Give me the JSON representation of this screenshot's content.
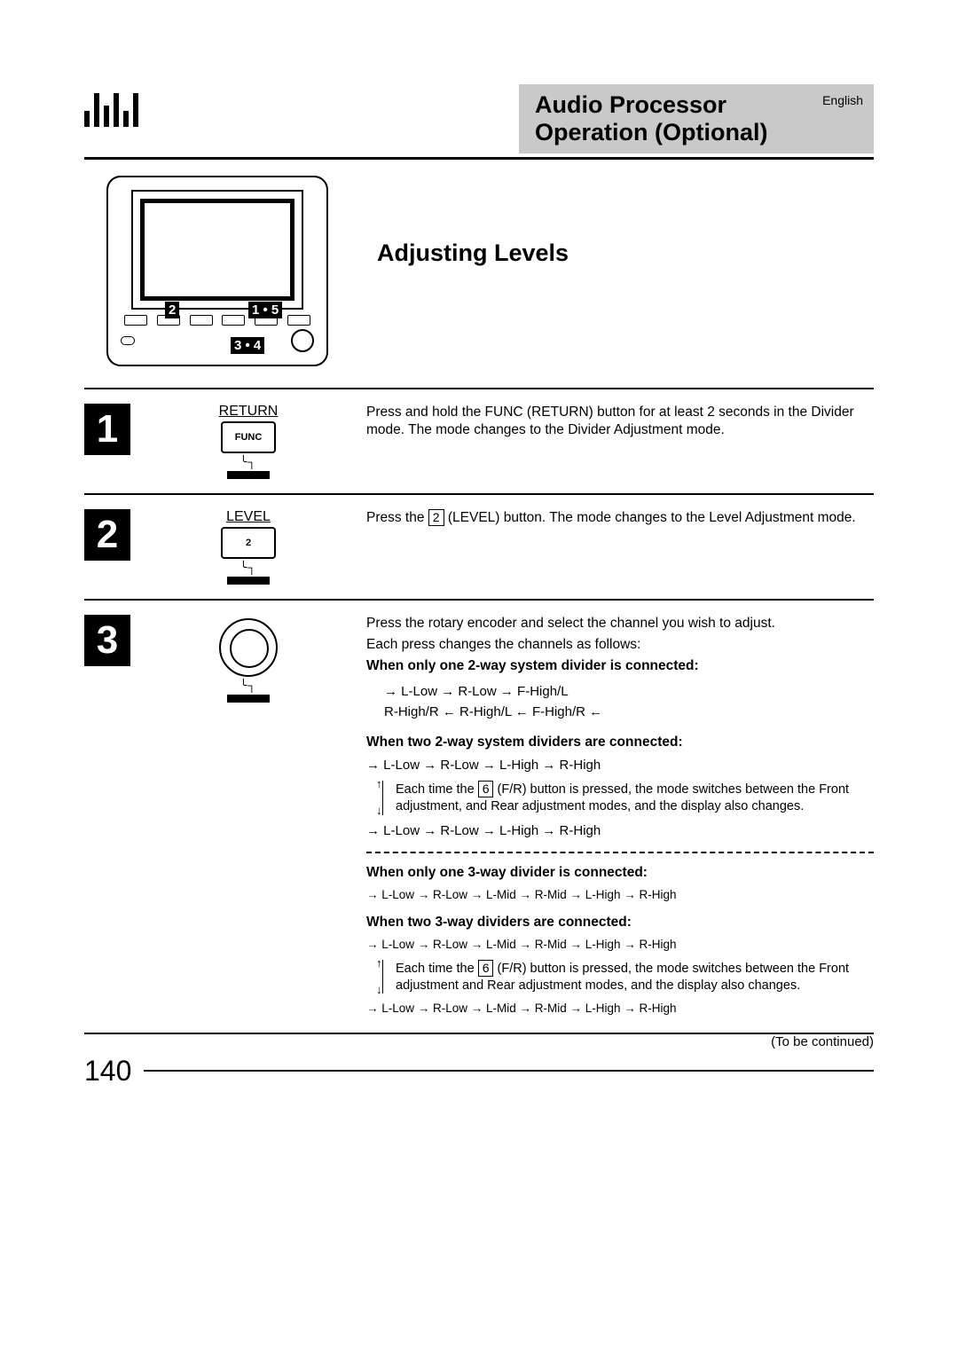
{
  "header": {
    "title_line1": "Audio Processor",
    "title_line2": "Operation (Optional)",
    "language": "English",
    "bars_heights": [
      18,
      38,
      24,
      38,
      18,
      38
    ]
  },
  "device_callouts": {
    "c1": "2",
    "c2": "1 • 5",
    "c3": "3 • 4"
  },
  "section_title": "Adjusting Levels",
  "steps": [
    {
      "num": "1",
      "label_top": "RETURN",
      "label_btn": "FUNC",
      "text": "Press and hold the FUNC (RETURN) button for at least 2 seconds in the Divider mode. The mode changes to the Divider Adjustment mode."
    },
    {
      "num": "2",
      "label_top": "LEVEL",
      "label_btn": "2",
      "text_a": "Press the ",
      "text_key": "2",
      "text_b": " (LEVEL) button. The mode changes to the Level Adjustment mode."
    },
    {
      "num": "3",
      "intro1": "Press the rotary encoder and select the channel you wish to adjust.",
      "intro2": "Each press changes the channels as follows:",
      "case1_title": "When only one 2-way system divider is connected:",
      "case1_flow1": "→ L-Low → R-Low → F-High/L",
      "case1_flow2": "R-High/R ← R-High/L ← F-High/R ←",
      "case2_title": "When two 2-way system dividers are connected:",
      "case2_flow": "→ L-Low → R-Low → L-High → R-High",
      "case2_note_a": "Each time the ",
      "case2_note_key": "6",
      "case2_note_b": " (F/R) button is pressed, the mode switches between the Front adjustment, and Rear adjustment modes, and the display also changes.",
      "case3_title": "When only one 3-way divider is connected:",
      "case3_flow": "→ L-Low → R-Low → L-Mid → R-Mid → L-High → R-High",
      "case4_title": "When two 3-way dividers are connected:",
      "case4_flow": "→ L-Low → R-Low → L-Mid → R-Mid → L-High → R-High",
      "case4_note_a": "Each time the ",
      "case4_note_key": "6",
      "case4_note_b": " (F/R) button is pressed, the mode switches between the Front adjustment and Rear adjustment modes, and the display also changes."
    }
  ],
  "footer": {
    "page": "140",
    "continued": "(To be continued)"
  }
}
